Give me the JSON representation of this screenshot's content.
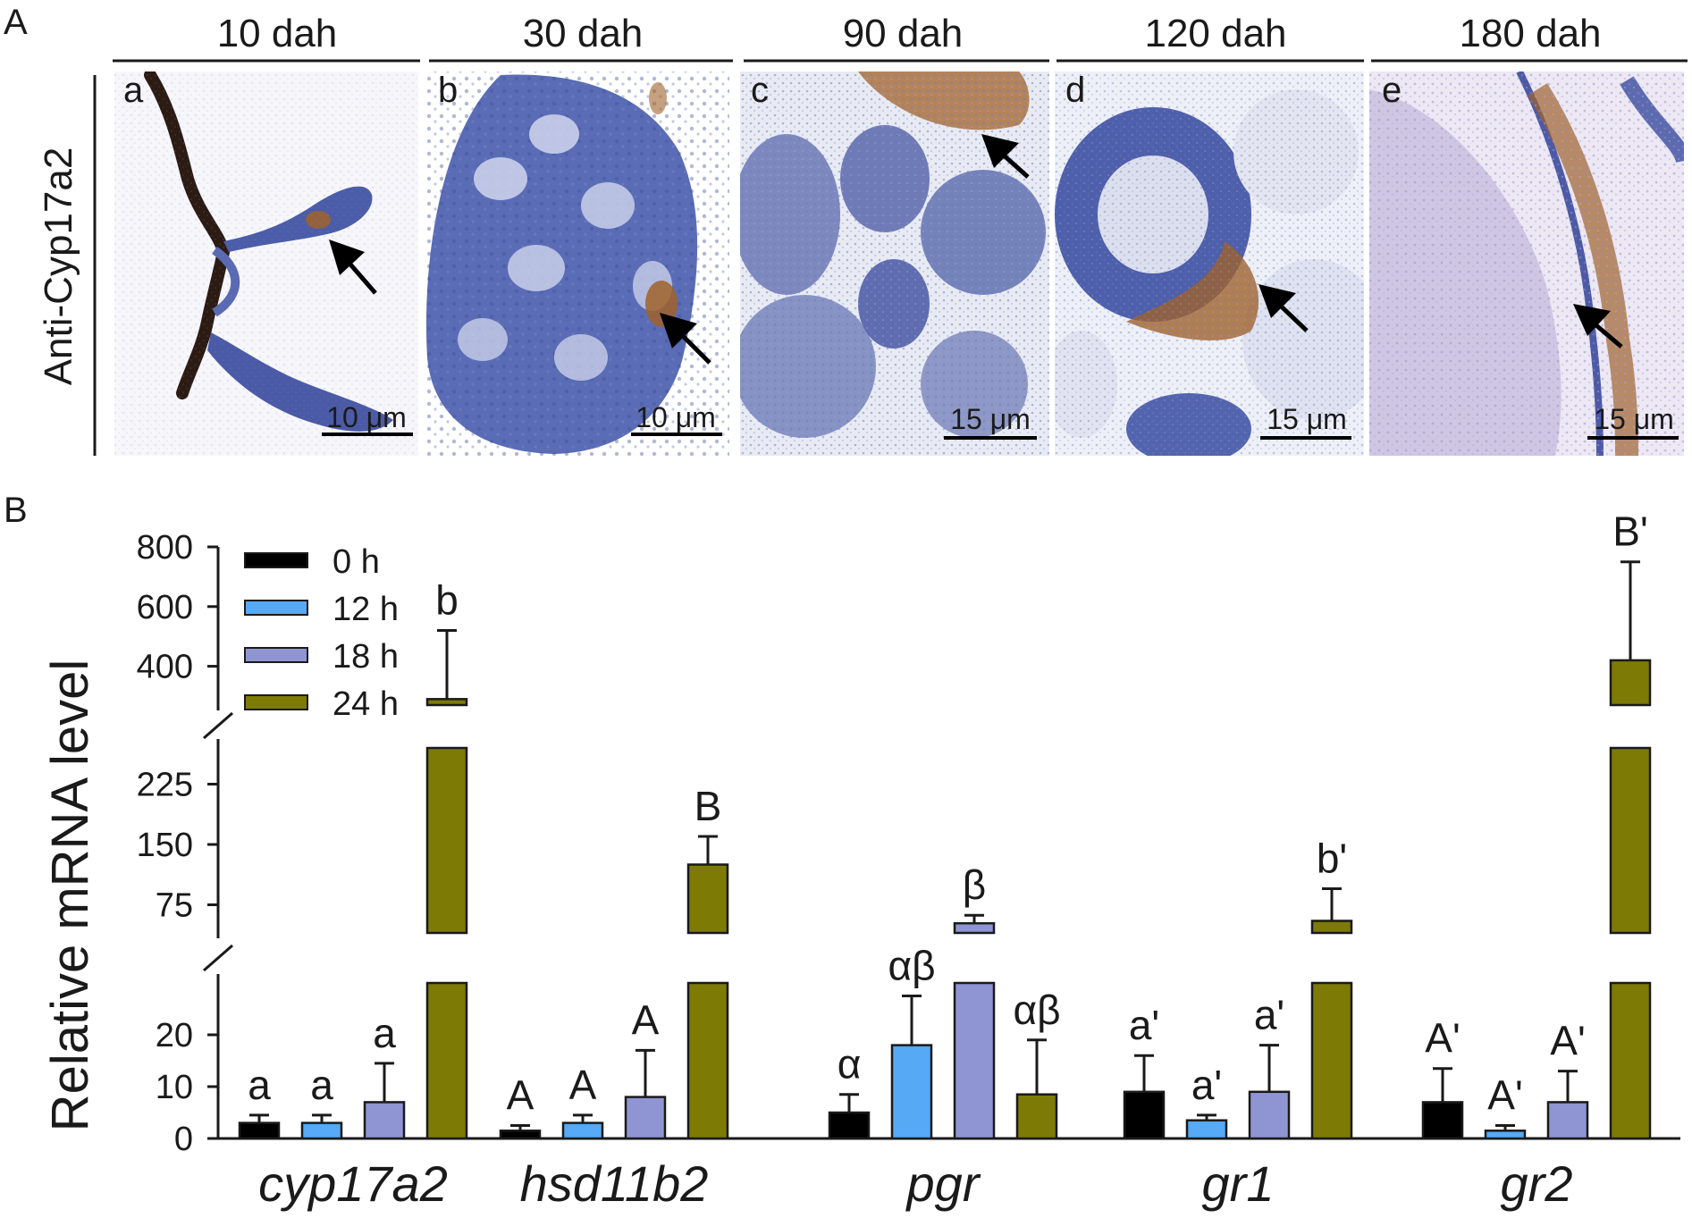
{
  "panel_a": {
    "label": "A",
    "row_label": "Anti-Cyp17a2",
    "columns": [
      {
        "header": "10 dah",
        "letter": "a",
        "scale": "10 μm"
      },
      {
        "header": "30 dah",
        "letter": "b",
        "scale": "10 μm"
      },
      {
        "header": "90 dah",
        "letter": "c",
        "scale": "15 μm"
      },
      {
        "header": "120 dah",
        "letter": "d",
        "scale": "15 μm"
      },
      {
        "header": "180 dah",
        "letter": "e",
        "scale": "15 μm"
      }
    ],
    "colors": {
      "stain_background": "#5b6eb4",
      "positive_stain": "#a0622a",
      "tissue_light": "#e7e9f4"
    }
  },
  "chart_data": {
    "type": "bar",
    "panel_label": "B",
    "title": "",
    "xlabel": "",
    "ylabel": "Relative mRNA level",
    "categories": [
      "cyp17a2",
      "hsd11b2",
      "pgr",
      "gr1",
      "gr2"
    ],
    "axis_breaks": true,
    "segments": [
      {
        "range": [
          0,
          30
        ],
        "ticks": [
          0,
          10,
          20
        ]
      },
      {
        "range": [
          40,
          270
        ],
        "ticks": [
          75,
          150,
          225
        ]
      },
      {
        "range": [
          270,
          800
        ],
        "ticks": [
          400,
          600,
          800
        ]
      }
    ],
    "legend_position": "top-left",
    "series": [
      {
        "name": "0 h",
        "color": "#000000",
        "values": [
          3,
          1.5,
          5,
          9,
          7
        ],
        "errors": [
          1.5,
          1,
          3.5,
          7,
          6.5
        ],
        "letters": [
          "a",
          "A",
          "α",
          "a'",
          "A'"
        ]
      },
      {
        "name": "12 h",
        "color": "#55a9f5",
        "values": [
          3,
          3,
          18,
          3.5,
          1.5
        ],
        "errors": [
          1.5,
          1.5,
          9.5,
          1,
          1
        ],
        "letters": [
          "a",
          "A",
          "αβ",
          "a'",
          "A'"
        ]
      },
      {
        "name": "18 h",
        "color": "#8f95d3",
        "values": [
          7,
          8,
          52,
          9,
          7
        ],
        "errors": [
          7.5,
          9,
          10,
          9,
          6
        ],
        "letters": [
          "a",
          "A",
          "β",
          "a'",
          "A'"
        ]
      },
      {
        "name": "24 h",
        "color": "#7d7a06",
        "values": [
          290,
          125,
          8.5,
          55,
          420
        ],
        "errors": [
          230,
          35,
          10.5,
          40,
          330
        ],
        "letters": [
          "b",
          "B",
          "αβ",
          "b'",
          "B'"
        ]
      }
    ]
  }
}
